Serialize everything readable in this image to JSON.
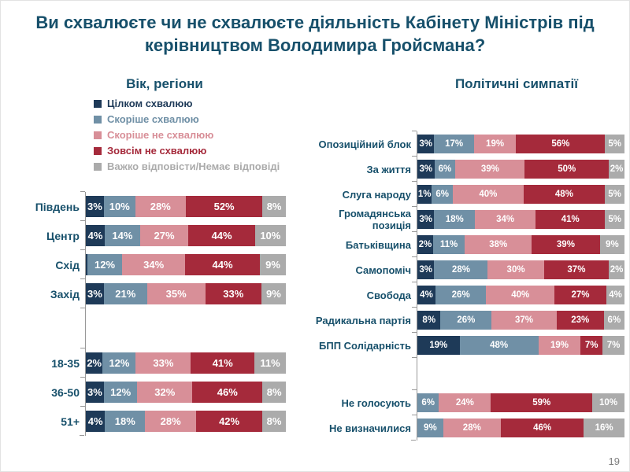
{
  "title": "Ви схвалюєте чи не схвалюєте діяльність Кабінету Міністрів під керівництвом Володимира Гройсмана?",
  "page_number": "19",
  "palette": {
    "approve_full": "#1E3A58",
    "approve_somewhat": "#7090A6",
    "disapprove_somewhat": "#D88F98",
    "disapprove_full": "#A52A3B",
    "no_answer": "#ABABAB",
    "heading_text": "#17506B",
    "axis": "#999999"
  },
  "legend": {
    "items": [
      {
        "label": "Цілком схвалюю",
        "color": "#1E3A58"
      },
      {
        "label": "Скоріше схвалюю",
        "color": "#7090A6"
      },
      {
        "label": "Скоріше не схвалюю",
        "color": "#D88F98"
      },
      {
        "label": "Зовсім не схвалюю",
        "color": "#A52A3B"
      },
      {
        "label": "Важко відповісти/Немає відповіді",
        "color": "#ABABAB"
      }
    ]
  },
  "left_chart": {
    "header": "Вік, регіони",
    "rows": [
      {
        "label": "Південь",
        "values": [
          3,
          10,
          28,
          52,
          8
        ],
        "texts": [
          "3%",
          "10%",
          "28%",
          "52%",
          "8%"
        ]
      },
      {
        "label": "Центр",
        "values": [
          4,
          14,
          27,
          44,
          10
        ],
        "texts": [
          "4%",
          "14%",
          "27%",
          "44%",
          "10%"
        ]
      },
      {
        "label": "Схід",
        "values": [
          1,
          12,
          34,
          44,
          9
        ],
        "texts": [
          "",
          "12%",
          "34%",
          "44%",
          "9%"
        ]
      },
      {
        "label": "Захід",
        "values": [
          3,
          21,
          35,
          33,
          9
        ],
        "texts": [
          "3%",
          "21%",
          "35%",
          "33%",
          "9%"
        ]
      },
      {
        "spacer": true
      },
      {
        "label": "18-35",
        "values": [
          2,
          12,
          33,
          41,
          11
        ],
        "texts": [
          "2%",
          "12%",
          "33%",
          "41%",
          "11%"
        ]
      },
      {
        "label": "36-50",
        "values": [
          3,
          12,
          32,
          46,
          8
        ],
        "texts": [
          "3%",
          "12%",
          "32%",
          "46%",
          "8%"
        ]
      },
      {
        "label": "51+",
        "values": [
          4,
          18,
          28,
          42,
          8
        ],
        "texts": [
          "4%",
          "18%",
          "28%",
          "42%",
          "8%"
        ]
      }
    ]
  },
  "right_chart": {
    "header": "Політичні симпатії",
    "rows": [
      {
        "label": "Опозиційний блок",
        "values": [
          3,
          17,
          19,
          56,
          5
        ],
        "texts": [
          "3%",
          "17%",
          "19%",
          "56%",
          "5%"
        ]
      },
      {
        "label": "За життя",
        "values": [
          3,
          6,
          39,
          50,
          2
        ],
        "texts": [
          "3%",
          "6%",
          "39%",
          "50%",
          "2%"
        ]
      },
      {
        "label": "Слуга народу",
        "values": [
          1,
          6,
          40,
          48,
          5
        ],
        "texts": [
          "1%",
          "6%",
          "40%",
          "48%",
          "5%"
        ]
      },
      {
        "label": "Громадянська позиція",
        "values": [
          3,
          18,
          34,
          41,
          5
        ],
        "texts": [
          "3%",
          "18%",
          "34%",
          "41%",
          "5%"
        ]
      },
      {
        "label": "Батьківщина",
        "values": [
          2,
          11,
          38,
          39,
          9
        ],
        "texts": [
          "2%",
          "11%",
          "38%",
          "39%",
          "9%"
        ]
      },
      {
        "label": "Самопоміч",
        "values": [
          3,
          28,
          30,
          37,
          2
        ],
        "texts": [
          "3%",
          "28%",
          "30%",
          "37%",
          "2%"
        ]
      },
      {
        "label": "Свобода",
        "values": [
          4,
          26,
          40,
          27,
          4
        ],
        "texts": [
          "4%",
          "26%",
          "40%",
          "27%",
          "4%"
        ]
      },
      {
        "label": "Радикальна партія",
        "values": [
          8,
          26,
          37,
          23,
          6
        ],
        "texts": [
          "8%",
          "26%",
          "37%",
          "23%",
          "6%"
        ]
      },
      {
        "label": "БПП Солідарність",
        "values": [
          19,
          48,
          19,
          7,
          7
        ],
        "texts": [
          "19%",
          "48%",
          "19%",
          "7%",
          "7%"
        ]
      },
      {
        "spacer": true
      },
      {
        "label": "Не голосують",
        "values": [
          0,
          6,
          24,
          59,
          10
        ],
        "texts": [
          "",
          "6%",
          "24%",
          "59%",
          "10%"
        ]
      },
      {
        "label": "Не визначилися",
        "values": [
          0,
          9,
          28,
          46,
          16
        ],
        "texts": [
          "",
          "9%",
          "28%",
          "46%",
          "16%"
        ]
      }
    ]
  },
  "chart_data": [
    {
      "type": "bar",
      "orientation": "horizontal-stacked",
      "title": "Вік, регіони",
      "units": "percent",
      "xlim": [
        0,
        100
      ],
      "categories": [
        "Південь",
        "Центр",
        "Схід",
        "Захід",
        "18-35",
        "36-50",
        "51+"
      ],
      "series": [
        {
          "name": "Цілком схвалюю",
          "values": [
            3,
            4,
            1,
            3,
            2,
            3,
            4
          ]
        },
        {
          "name": "Скоріше схвалюю",
          "values": [
            10,
            14,
            12,
            21,
            12,
            12,
            18
          ]
        },
        {
          "name": "Скоріше не схвалюю",
          "values": [
            28,
            27,
            34,
            35,
            33,
            32,
            28
          ]
        },
        {
          "name": "Зовсім не схвалюю",
          "values": [
            52,
            44,
            44,
            33,
            41,
            46,
            42
          ]
        },
        {
          "name": "Важко відповісти/Немає відповіді",
          "values": [
            8,
            10,
            9,
            9,
            11,
            8,
            8
          ]
        }
      ],
      "legend_position": "top-left",
      "grid": false
    },
    {
      "type": "bar",
      "orientation": "horizontal-stacked",
      "title": "Політичні симпатії",
      "units": "percent",
      "xlim": [
        0,
        100
      ],
      "categories": [
        "Опозиційний блок",
        "За життя",
        "Слуга народу",
        "Громадянська позиція",
        "Батьківщина",
        "Самопоміч",
        "Свобода",
        "Радикальна партія",
        "БПП Солідарність",
        "Не голосують",
        "Не визначилися"
      ],
      "series": [
        {
          "name": "Цілком схвалюю",
          "values": [
            3,
            3,
            1,
            3,
            2,
            3,
            4,
            8,
            19,
            0,
            0
          ]
        },
        {
          "name": "Скоріше схвалюю",
          "values": [
            17,
            6,
            6,
            18,
            11,
            28,
            26,
            26,
            48,
            6,
            9
          ]
        },
        {
          "name": "Скоріше не схвалюю",
          "values": [
            19,
            39,
            40,
            34,
            38,
            30,
            40,
            37,
            19,
            24,
            28
          ]
        },
        {
          "name": "Зовсім не схвалюю",
          "values": [
            56,
            50,
            48,
            41,
            39,
            37,
            27,
            23,
            7,
            59,
            46
          ]
        },
        {
          "name": "Важко відповісти/Немає відповіді",
          "values": [
            5,
            2,
            5,
            5,
            9,
            2,
            4,
            6,
            7,
            10,
            16
          ]
        }
      ],
      "legend_position": "shared-top-left",
      "grid": false
    }
  ]
}
